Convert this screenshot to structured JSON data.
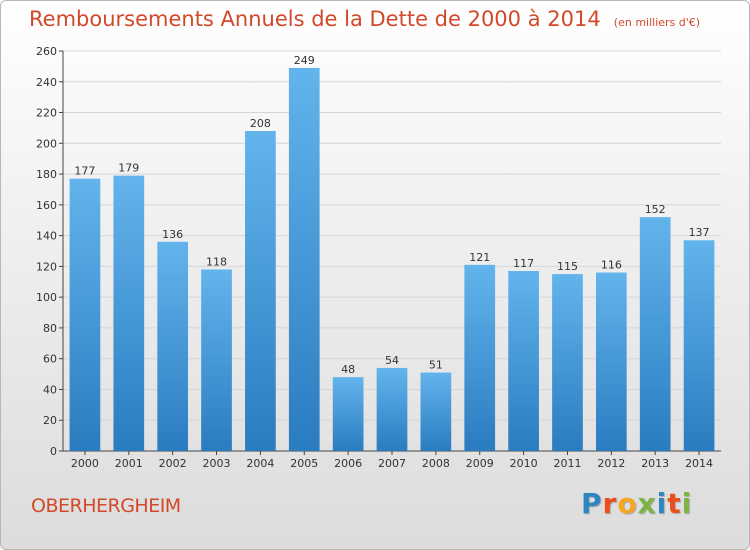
{
  "header": {
    "title": "Remboursements Annuels de la Dette de 2000 à 2014",
    "subtitle": "(en milliers d'€)"
  },
  "footer": {
    "commune": "OBERHERGHEIM",
    "logo": {
      "text": "Proxiti",
      "letters": [
        {
          "char": "P",
          "color": "#2e86c1"
        },
        {
          "char": "r",
          "color": "#e94e1b"
        },
        {
          "char": "o",
          "color": "#f5a623"
        },
        {
          "char": "x",
          "color": "#7cb342"
        },
        {
          "char": "i",
          "color": "#2e86c1"
        },
        {
          "char": "t",
          "color": "#e94e1b"
        },
        {
          "char": "i",
          "color": "#7cb342"
        }
      ]
    }
  },
  "chart_data": {
    "type": "bar",
    "title": "Remboursements Annuels de la Dette de 2000 à 2014",
    "subtitle": "(en milliers d'€)",
    "xlabel": "",
    "ylabel": "",
    "categories": [
      "2000",
      "2001",
      "2002",
      "2003",
      "2004",
      "2005",
      "2006",
      "2007",
      "2008",
      "2009",
      "2010",
      "2011",
      "2012",
      "2013",
      "2014"
    ],
    "values": [
      177,
      179,
      136,
      118,
      208,
      249,
      48,
      54,
      51,
      121,
      117,
      115,
      116,
      152,
      137
    ],
    "ylim": [
      0,
      260
    ],
    "yticks": [
      0,
      20,
      40,
      60,
      80,
      100,
      120,
      140,
      160,
      180,
      200,
      220,
      240,
      260
    ],
    "grid": true,
    "data_labels": true,
    "colors": {
      "bar_top": "#63b4ec",
      "bar_bottom": "#2a7cc0",
      "title": "#d2492a",
      "grid": "#d6d6d6"
    }
  }
}
